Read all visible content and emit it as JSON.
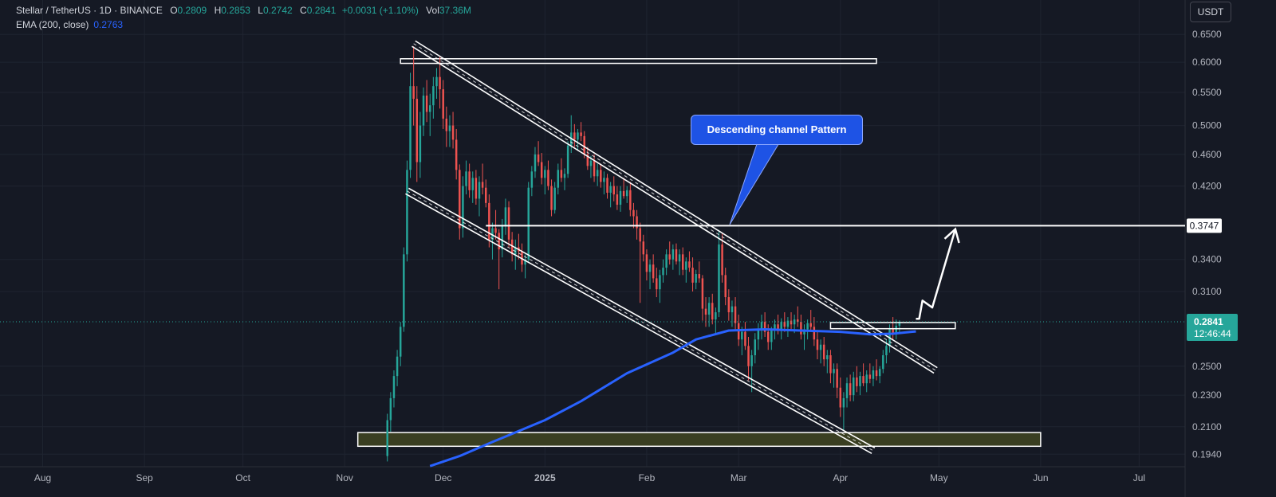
{
  "header": {
    "symbol": "Stellar / TetherUS · 1D · BINANCE",
    "open_label": "O",
    "open": "0.2809",
    "high_label": "H",
    "high": "0.2853",
    "low_label": "L",
    "low": "0.2742",
    "close_label": "C",
    "close": "0.2841",
    "change": "+0.0031 (+1.10%)",
    "vol_label": "Vol",
    "vol": "37.36M"
  },
  "indicator": {
    "label": "EMA (200, close)",
    "value": "0.2763"
  },
  "currency_button": "USDT",
  "annotation": {
    "text": "Descending channel Pattern"
  },
  "price_labels": {
    "resistance": "0.3747",
    "last": "0.2841",
    "countdown": "12:46:44"
  },
  "colors": {
    "up": "#26a69a",
    "down": "#ef5350",
    "ema": "#2962ff",
    "background": "#151924",
    "grid": "#1f2430",
    "support_zone": "#3a3f22"
  },
  "chart_data": {
    "type": "candlestick",
    "y_scale": "log",
    "ylim": [
      0.188,
      0.67
    ],
    "y_ticks": [
      "0.6500",
      "0.6000",
      "0.5500",
      "0.5000",
      "0.4600",
      "0.4200",
      "0.3747",
      "0.3400",
      "0.3100",
      "0.2841",
      "0.2500",
      "0.2300",
      "0.2100",
      "0.1940"
    ],
    "x_ticks": [
      "Aug",
      "Sep",
      "Oct",
      "Nov",
      "Dec",
      "2025",
      "Feb",
      "Mar",
      "Apr",
      "May",
      "Jun",
      "Jul"
    ],
    "x_tick_dates": [
      "2024-08-01",
      "2024-09-01",
      "2024-10-01",
      "2024-11-01",
      "2024-12-01",
      "2025-01-01",
      "2025-02-01",
      "2025-03-01",
      "2025-04-01",
      "2025-05-01",
      "2025-06-01",
      "2025-07-01"
    ],
    "x_range": [
      "2024-07-19",
      "2025-07-15"
    ],
    "first_candle_date": "2024-11-14",
    "ohlc": [
      [
        0.193,
        0.218,
        0.19,
        0.214
      ],
      [
        0.214,
        0.232,
        0.207,
        0.228
      ],
      [
        0.228,
        0.247,
        0.222,
        0.243
      ],
      [
        0.243,
        0.262,
        0.236,
        0.257
      ],
      [
        0.257,
        0.284,
        0.25,
        0.28
      ],
      [
        0.28,
        0.352,
        0.276,
        0.345
      ],
      [
        0.345,
        0.452,
        0.338,
        0.44
      ],
      [
        0.44,
        0.582,
        0.43,
        0.56
      ],
      [
        0.56,
        0.628,
        0.5,
        0.54
      ],
      [
        0.54,
        0.56,
        0.425,
        0.45
      ],
      [
        0.45,
        0.52,
        0.43,
        0.5
      ],
      [
        0.5,
        0.558,
        0.485,
        0.545
      ],
      [
        0.545,
        0.57,
        0.505,
        0.52
      ],
      [
        0.52,
        0.548,
        0.485,
        0.53
      ],
      [
        0.53,
        0.575,
        0.51,
        0.56
      ],
      [
        0.56,
        0.59,
        0.54,
        0.575
      ],
      [
        0.575,
        0.61,
        0.525,
        0.555
      ],
      [
        0.555,
        0.57,
        0.495,
        0.51
      ],
      [
        0.51,
        0.528,
        0.47,
        0.492
      ],
      [
        0.492,
        0.515,
        0.47,
        0.5
      ],
      [
        0.5,
        0.52,
        0.468,
        0.48
      ],
      [
        0.48,
        0.495,
        0.428,
        0.44
      ],
      [
        0.44,
        0.447,
        0.36,
        0.372
      ],
      [
        0.372,
        0.432,
        0.362,
        0.42
      ],
      [
        0.42,
        0.452,
        0.41,
        0.438
      ],
      [
        0.438,
        0.448,
        0.406,
        0.415
      ],
      [
        0.415,
        0.438,
        0.4,
        0.43
      ],
      [
        0.43,
        0.44,
        0.398,
        0.405
      ],
      [
        0.405,
        0.432,
        0.385,
        0.425
      ],
      [
        0.425,
        0.448,
        0.41,
        0.418
      ],
      [
        0.418,
        0.428,
        0.395,
        0.4
      ],
      [
        0.4,
        0.41,
        0.352,
        0.36
      ],
      [
        0.36,
        0.378,
        0.34,
        0.372
      ],
      [
        0.372,
        0.392,
        0.36,
        0.367
      ],
      [
        0.367,
        0.371,
        0.312,
        0.35
      ],
      [
        0.35,
        0.382,
        0.342,
        0.375
      ],
      [
        0.375,
        0.405,
        0.365,
        0.395
      ],
      [
        0.395,
        0.402,
        0.352,
        0.36
      ],
      [
        0.36,
        0.368,
        0.338,
        0.345
      ],
      [
        0.345,
        0.36,
        0.33,
        0.352
      ],
      [
        0.352,
        0.366,
        0.34,
        0.348
      ],
      [
        0.348,
        0.356,
        0.328,
        0.335
      ],
      [
        0.335,
        0.345,
        0.322,
        0.34
      ],
      [
        0.34,
        0.425,
        0.338,
        0.418
      ],
      [
        0.418,
        0.445,
        0.408,
        0.438
      ],
      [
        0.438,
        0.47,
        0.43,
        0.46
      ],
      [
        0.46,
        0.478,
        0.445,
        0.45
      ],
      [
        0.45,
        0.462,
        0.422,
        0.43
      ],
      [
        0.43,
        0.445,
        0.41,
        0.44
      ],
      [
        0.44,
        0.452,
        0.415,
        0.42
      ],
      [
        0.42,
        0.428,
        0.385,
        0.392
      ],
      [
        0.392,
        0.425,
        0.388,
        0.418
      ],
      [
        0.418,
        0.448,
        0.41,
        0.44
      ],
      [
        0.44,
        0.455,
        0.425,
        0.43
      ],
      [
        0.43,
        0.442,
        0.415,
        0.435
      ],
      [
        0.435,
        0.478,
        0.43,
        0.472
      ],
      [
        0.472,
        0.515,
        0.462,
        0.49
      ],
      [
        0.49,
        0.502,
        0.47,
        0.48
      ],
      [
        0.48,
        0.495,
        0.465,
        0.49
      ],
      [
        0.49,
        0.505,
        0.478,
        0.485
      ],
      [
        0.485,
        0.492,
        0.455,
        0.46
      ],
      [
        0.46,
        0.47,
        0.44,
        0.445
      ],
      [
        0.445,
        0.458,
        0.43,
        0.452
      ],
      [
        0.452,
        0.46,
        0.425,
        0.432
      ],
      [
        0.432,
        0.448,
        0.42,
        0.44
      ],
      [
        0.44,
        0.448,
        0.418,
        0.425
      ],
      [
        0.425,
        0.438,
        0.41,
        0.43
      ],
      [
        0.43,
        0.435,
        0.405,
        0.412
      ],
      [
        0.412,
        0.425,
        0.395,
        0.42
      ],
      [
        0.42,
        0.432,
        0.402,
        0.41
      ],
      [
        0.41,
        0.42,
        0.392,
        0.398
      ],
      [
        0.398,
        0.42,
        0.39,
        0.414
      ],
      [
        0.414,
        0.43,
        0.405,
        0.408
      ],
      [
        0.408,
        0.42,
        0.4,
        0.415
      ],
      [
        0.415,
        0.425,
        0.385,
        0.392
      ],
      [
        0.392,
        0.4,
        0.372,
        0.385
      ],
      [
        0.385,
        0.392,
        0.36,
        0.372
      ],
      [
        0.372,
        0.378,
        0.3,
        0.358
      ],
      [
        0.358,
        0.365,
        0.338,
        0.345
      ],
      [
        0.345,
        0.35,
        0.32,
        0.328
      ],
      [
        0.328,
        0.34,
        0.312,
        0.335
      ],
      [
        0.335,
        0.345,
        0.318,
        0.322
      ],
      [
        0.322,
        0.332,
        0.305,
        0.312
      ],
      [
        0.312,
        0.33,
        0.3,
        0.325
      ],
      [
        0.325,
        0.34,
        0.318,
        0.332
      ],
      [
        0.332,
        0.35,
        0.325,
        0.345
      ],
      [
        0.345,
        0.358,
        0.335,
        0.34
      ],
      [
        0.34,
        0.355,
        0.33,
        0.35
      ],
      [
        0.35,
        0.356,
        0.335,
        0.338
      ],
      [
        0.338,
        0.35,
        0.325,
        0.345
      ],
      [
        0.345,
        0.352,
        0.325,
        0.33
      ],
      [
        0.33,
        0.342,
        0.318,
        0.338
      ],
      [
        0.338,
        0.348,
        0.328,
        0.332
      ],
      [
        0.332,
        0.342,
        0.31,
        0.318
      ],
      [
        0.318,
        0.33,
        0.312,
        0.326
      ],
      [
        0.326,
        0.338,
        0.318,
        0.322
      ],
      [
        0.322,
        0.325,
        0.285,
        0.295
      ],
      [
        0.295,
        0.305,
        0.28,
        0.29
      ],
      [
        0.29,
        0.305,
        0.28,
        0.3
      ],
      [
        0.3,
        0.308,
        0.282,
        0.286
      ],
      [
        0.286,
        0.296,
        0.275,
        0.292
      ],
      [
        0.292,
        0.37,
        0.288,
        0.355
      ],
      [
        0.355,
        0.366,
        0.318,
        0.325
      ],
      [
        0.325,
        0.332,
        0.298,
        0.305
      ],
      [
        0.305,
        0.312,
        0.285,
        0.292
      ],
      [
        0.292,
        0.302,
        0.28,
        0.297
      ],
      [
        0.297,
        0.305,
        0.278,
        0.283
      ],
      [
        0.283,
        0.29,
        0.265,
        0.27
      ],
      [
        0.27,
        0.28,
        0.258,
        0.276
      ],
      [
        0.276,
        0.284,
        0.262,
        0.265
      ],
      [
        0.265,
        0.272,
        0.24,
        0.25
      ],
      [
        0.25,
        0.262,
        0.232,
        0.258
      ],
      [
        0.258,
        0.275,
        0.252,
        0.27
      ],
      [
        0.27,
        0.283,
        0.262,
        0.277
      ],
      [
        0.277,
        0.29,
        0.27,
        0.284
      ],
      [
        0.284,
        0.292,
        0.272,
        0.276
      ],
      [
        0.276,
        0.282,
        0.262,
        0.268
      ],
      [
        0.268,
        0.28,
        0.262,
        0.277
      ],
      [
        0.277,
        0.286,
        0.27,
        0.282
      ],
      [
        0.282,
        0.29,
        0.274,
        0.278
      ],
      [
        0.278,
        0.287,
        0.27,
        0.284
      ],
      [
        0.284,
        0.292,
        0.276,
        0.28
      ],
      [
        0.28,
        0.288,
        0.272,
        0.285
      ],
      [
        0.285,
        0.292,
        0.278,
        0.282
      ],
      [
        0.282,
        0.29,
        0.275,
        0.286
      ],
      [
        0.286,
        0.297,
        0.28,
        0.284
      ],
      [
        0.284,
        0.29,
        0.27,
        0.274
      ],
      [
        0.274,
        0.282,
        0.262,
        0.278
      ],
      [
        0.278,
        0.286,
        0.27,
        0.283
      ],
      [
        0.283,
        0.294,
        0.276,
        0.28
      ],
      [
        0.28,
        0.288,
        0.265,
        0.27
      ],
      [
        0.27,
        0.277,
        0.255,
        0.262
      ],
      [
        0.262,
        0.27,
        0.252,
        0.266
      ],
      [
        0.266,
        0.272,
        0.25,
        0.255
      ],
      [
        0.255,
        0.262,
        0.245,
        0.258
      ],
      [
        0.258,
        0.262,
        0.238,
        0.245
      ],
      [
        0.245,
        0.252,
        0.235,
        0.248
      ],
      [
        0.248,
        0.252,
        0.228,
        0.235
      ],
      [
        0.235,
        0.242,
        0.216,
        0.222
      ],
      [
        0.222,
        0.232,
        0.208,
        0.228
      ],
      [
        0.228,
        0.242,
        0.222,
        0.238
      ],
      [
        0.238,
        0.244,
        0.226,
        0.23
      ],
      [
        0.23,
        0.246,
        0.226,
        0.242
      ],
      [
        0.242,
        0.25,
        0.232,
        0.236
      ],
      [
        0.236,
        0.246,
        0.23,
        0.243
      ],
      [
        0.243,
        0.252,
        0.236,
        0.238
      ],
      [
        0.238,
        0.247,
        0.232,
        0.244
      ],
      [
        0.244,
        0.252,
        0.238,
        0.241
      ],
      [
        0.241,
        0.25,
        0.236,
        0.247
      ],
      [
        0.247,
        0.255,
        0.24,
        0.243
      ],
      [
        0.243,
        0.25,
        0.238,
        0.248
      ],
      [
        0.248,
        0.262,
        0.245,
        0.258
      ],
      [
        0.258,
        0.27,
        0.252,
        0.265
      ],
      [
        0.265,
        0.282,
        0.26,
        0.278
      ],
      [
        0.278,
        0.288,
        0.27,
        0.275
      ],
      [
        0.275,
        0.286,
        0.27,
        0.2809
      ],
      [
        0.2809,
        0.2853,
        0.2742,
        0.2841
      ]
    ],
    "ema200": [
      [
        "2024-11-27",
        0.1875
      ],
      [
        "2024-12-06",
        0.193
      ],
      [
        "2024-12-16",
        0.201
      ],
      [
        "2025-01-01",
        0.214
      ],
      [
        "2025-01-12",
        0.226
      ],
      [
        "2025-01-26",
        0.245
      ],
      [
        "2025-02-09",
        0.26
      ],
      [
        "2025-02-16",
        0.27
      ],
      [
        "2025-02-26",
        0.277
      ],
      [
        "2025-03-09",
        0.278
      ],
      [
        "2025-03-20",
        0.277
      ],
      [
        "2025-04-01",
        0.276
      ],
      [
        "2025-04-10",
        0.274
      ],
      [
        "2025-04-17",
        0.2745
      ],
      [
        "2025-04-24",
        0.2763
      ]
    ],
    "channel_upper": [
      [
        "2024-11-22",
        0.633
      ],
      [
        "2025-04-30",
        0.247
      ]
    ],
    "channel_lower": [
      [
        "2024-11-20",
        0.414
      ],
      [
        "2025-04-11",
        0.196
      ]
    ],
    "resistance_level": 0.3747,
    "top_zone": {
      "from": "2024-11-18",
      "to": "2025-04-12",
      "y": [
        0.598,
        0.606
      ]
    },
    "support_zone": {
      "from": "2024-11-05",
      "to": "2025-06-01",
      "y": [
        0.1985,
        0.2065
      ]
    },
    "breakout_box": {
      "from": "2025-03-29",
      "to": "2025-05-06",
      "y": [
        0.2785,
        0.2835
      ]
    },
    "projection_arrow": [
      [
        "2025-04-24",
        0.2865
      ],
      [
        "2025-04-25",
        0.2865
      ],
      [
        "2025-04-26",
        0.302
      ],
      [
        "2025-04-29",
        0.296
      ],
      [
        "2025-05-06",
        0.371
      ]
    ],
    "last_price": 0.2841
  }
}
